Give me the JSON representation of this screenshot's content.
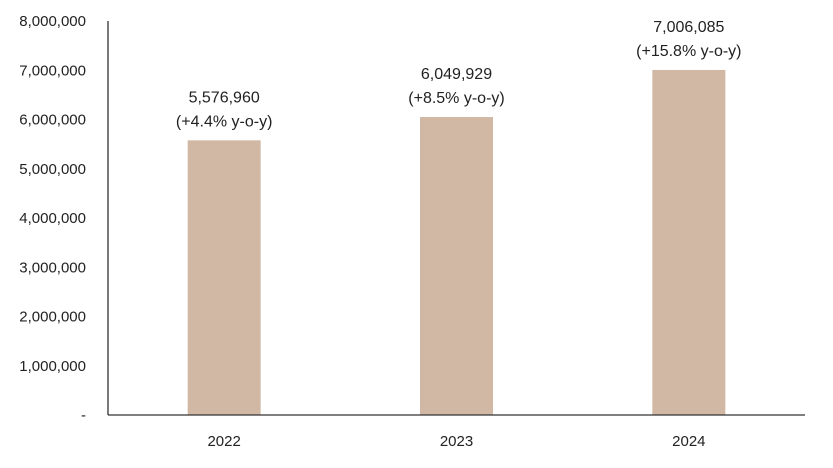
{
  "chart_data": {
    "type": "bar",
    "categories": [
      "2022",
      "2023",
      "2024"
    ],
    "values": [
      5576960,
      6049929,
      7006085
    ],
    "data_labels": [
      [
        "5,576,960",
        "(+4.4% y-o-y)"
      ],
      [
        "6,049,929",
        "(+8.5% y-o-y)"
      ],
      [
        "7,006,085",
        "(+15.8% y-o-y)"
      ]
    ],
    "y_ticks": [
      0,
      1000000,
      2000000,
      3000000,
      4000000,
      5000000,
      6000000,
      7000000,
      8000000
    ],
    "y_tick_labels": [
      "-",
      "1,000,000",
      "2,000,000",
      "3,000,000",
      "4,000,000",
      "5,000,000",
      "6,000,000",
      "7,000,000",
      "8,000,000"
    ],
    "ylim": [
      0,
      8000000
    ],
    "title": "",
    "xlabel": "",
    "ylabel": "",
    "grid": false,
    "legend": "none",
    "bar_color": "#d1b8a4",
    "axis_color": "#333333"
  }
}
